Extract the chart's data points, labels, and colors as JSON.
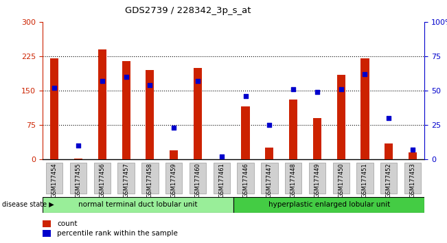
{
  "title": "GDS2739 / 228342_3p_s_at",
  "samples": [
    "GSM177454",
    "GSM177455",
    "GSM177456",
    "GSM177457",
    "GSM177458",
    "GSM177459",
    "GSM177460",
    "GSM177461",
    "GSM177446",
    "GSM177447",
    "GSM177448",
    "GSM177449",
    "GSM177450",
    "GSM177451",
    "GSM177452",
    "GSM177453"
  ],
  "count_values": [
    220,
    2,
    240,
    215,
    195,
    20,
    200,
    0,
    115,
    25,
    130,
    90,
    185,
    220,
    35,
    15
  ],
  "percentile_values": [
    52,
    10,
    57,
    60,
    54,
    23,
    57,
    2,
    46,
    25,
    51,
    49,
    51,
    62,
    30,
    7
  ],
  "group1_label": "normal terminal duct lobular unit",
  "group2_label": "hyperplastic enlarged lobular unit",
  "disease_state_label": "disease state",
  "left_ylim": [
    0,
    300
  ],
  "right_ylim": [
    0,
    100
  ],
  "left_yticks": [
    0,
    75,
    150,
    225,
    300
  ],
  "right_yticks": [
    0,
    25,
    50,
    75,
    100
  ],
  "left_color": "#cc2200",
  "right_color": "#0000cc",
  "bar_color": "#cc2200",
  "dot_color": "#0000cc",
  "group1_color": "#99ee99",
  "group2_color": "#44cc44",
  "legend_count_label": "count",
  "legend_pct_label": "percentile rank within the sample",
  "bar_width": 0.35,
  "hline_values": [
    75,
    150,
    225
  ],
  "n_group1": 8,
  "n_group2": 8
}
